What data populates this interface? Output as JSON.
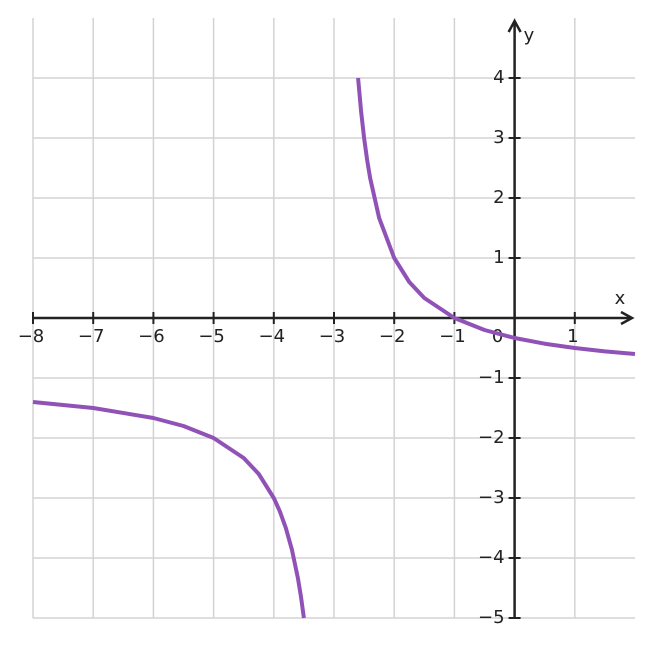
{
  "chart_data": {
    "type": "line",
    "x_label": "x",
    "y_label": "y",
    "xlim": [
      -8,
      2
    ],
    "ylim": [
      -5,
      5
    ],
    "xticks": [
      {
        "value": -8,
        "label": "−8"
      },
      {
        "value": -7,
        "label": "−7"
      },
      {
        "value": -6,
        "label": "−6"
      },
      {
        "value": -5,
        "label": "−5"
      },
      {
        "value": -4,
        "label": "−4"
      },
      {
        "value": -3,
        "label": "−3"
      },
      {
        "value": -2,
        "label": "−2"
      },
      {
        "value": -1,
        "label": "−1"
      },
      0,
      1
    ],
    "yticks": [
      {
        "value": -5,
        "label": "−5"
      },
      {
        "value": -4,
        "label": "−4"
      },
      {
        "value": -3,
        "label": "−3"
      },
      {
        "value": -2,
        "label": "−2"
      },
      {
        "value": -1,
        "label": "−1"
      },
      1,
      2,
      3,
      4
    ],
    "grid": true,
    "series": [
      {
        "color": "#9152b8",
        "x": [
          -8,
          -7,
          -6,
          -5.5,
          -5,
          -4.5,
          -4.25,
          -4,
          -3.9,
          -3.8,
          -3.7,
          -3.6,
          -3.55,
          -3.5,
          null,
          -2.6,
          -2.55,
          -2.5,
          -2.45,
          -2.4,
          -2.25,
          -2,
          -1.75,
          -1.5,
          -1,
          -0.5,
          0,
          0.5,
          1,
          1.5,
          2
        ],
        "values": [
          -1.4,
          -1.5,
          -1.6667,
          -1.8,
          -2,
          -2.3333,
          -2.6,
          -3,
          -3.2222,
          -3.5,
          -3.8571,
          -4.3333,
          -4.6364,
          -5,
          null,
          4,
          3.4444,
          3,
          2.6364,
          2.3333,
          1.6667,
          1,
          0.6,
          0.3333,
          0,
          -0.2,
          -0.3333,
          -0.4286,
          -0.5,
          -0.5556,
          -0.6
        ]
      }
    ]
  }
}
